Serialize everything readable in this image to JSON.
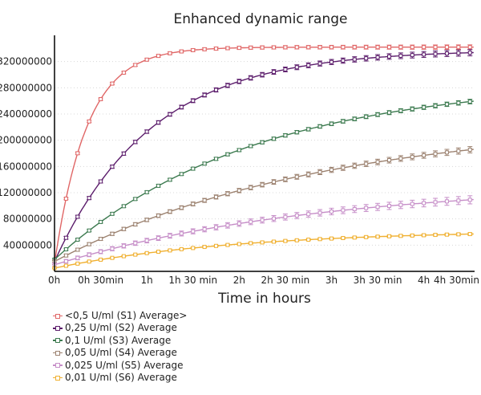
{
  "chart_data": {
    "type": "line",
    "title": "Enhanced dynamic range",
    "xlabel": "Time in hours",
    "ylabel": "",
    "xlim": [
      0,
      4.55
    ],
    "ylim": [
      0,
      360000000
    ],
    "x_ticks": [
      {
        "value": 0,
        "label": "0h"
      },
      {
        "value": 0.5,
        "label": "0h 30min"
      },
      {
        "value": 1,
        "label": "1h"
      },
      {
        "value": 1.5,
        "label": "1h 30 min"
      },
      {
        "value": 2,
        "label": "2h"
      },
      {
        "value": 2.5,
        "label": "2h 30 min"
      },
      {
        "value": 3,
        "label": "3h"
      },
      {
        "value": 3.5,
        "label": "3h 30 min"
      },
      {
        "value": 4,
        "label": "4h"
      },
      {
        "value": 4.5,
        "label": "4h 30min"
      }
    ],
    "y_ticks": [
      {
        "value": 40000000,
        "label": "40000000"
      },
      {
        "value": 80000000,
        "label": "80000000"
      },
      {
        "value": 120000000,
        "label": "120000000"
      },
      {
        "value": 160000000,
        "label": "160000000"
      },
      {
        "value": 200000000,
        "label": "200000000"
      },
      {
        "value": 240000000,
        "label": "240000000"
      },
      {
        "value": 280000000,
        "label": "280000000"
      },
      {
        "value": 320000000,
        "label": "320000000"
      }
    ],
    "grid": "horizontal-dotted",
    "legend_position": "bottom-left",
    "series": [
      {
        "name": "<0,5 U/ml (S1) Average>",
        "color": "#e06666",
        "plateau": 342000000,
        "rate": 2.85,
        "start": 12000000,
        "error": 2500000
      },
      {
        "name": "0,25 U/ml (S2) Average",
        "color": "#5b1c6b",
        "plateau": 338000000,
        "rate": 0.95,
        "start": 15000000,
        "error": 3500000
      },
      {
        "name": "0,1 U/ml (S3) Average",
        "color": "#3c7a4f",
        "plateau": 292000000,
        "rate": 0.47,
        "start": 18000000,
        "error": 2500000
      },
      {
        "name": "0,05 U/ml (S4) Average",
        "color": "#9c8270",
        "plateau": 230000000,
        "rate": 0.35,
        "start": 15000000,
        "error": 3500000
      },
      {
        "name": "0,025 U/ml (S5) Average",
        "color": "#c68ec8",
        "plateau": 135000000,
        "rate": 0.35,
        "start": 10000000,
        "error": 4500000
      },
      {
        "name": "0,01 U/ml (S6) Average",
        "color": "#f0b030",
        "plateau": 63000000,
        "rate": 0.5,
        "start": 5000000,
        "error": 1200000
      }
    ],
    "x_sample_step_hours": 0.125
  }
}
